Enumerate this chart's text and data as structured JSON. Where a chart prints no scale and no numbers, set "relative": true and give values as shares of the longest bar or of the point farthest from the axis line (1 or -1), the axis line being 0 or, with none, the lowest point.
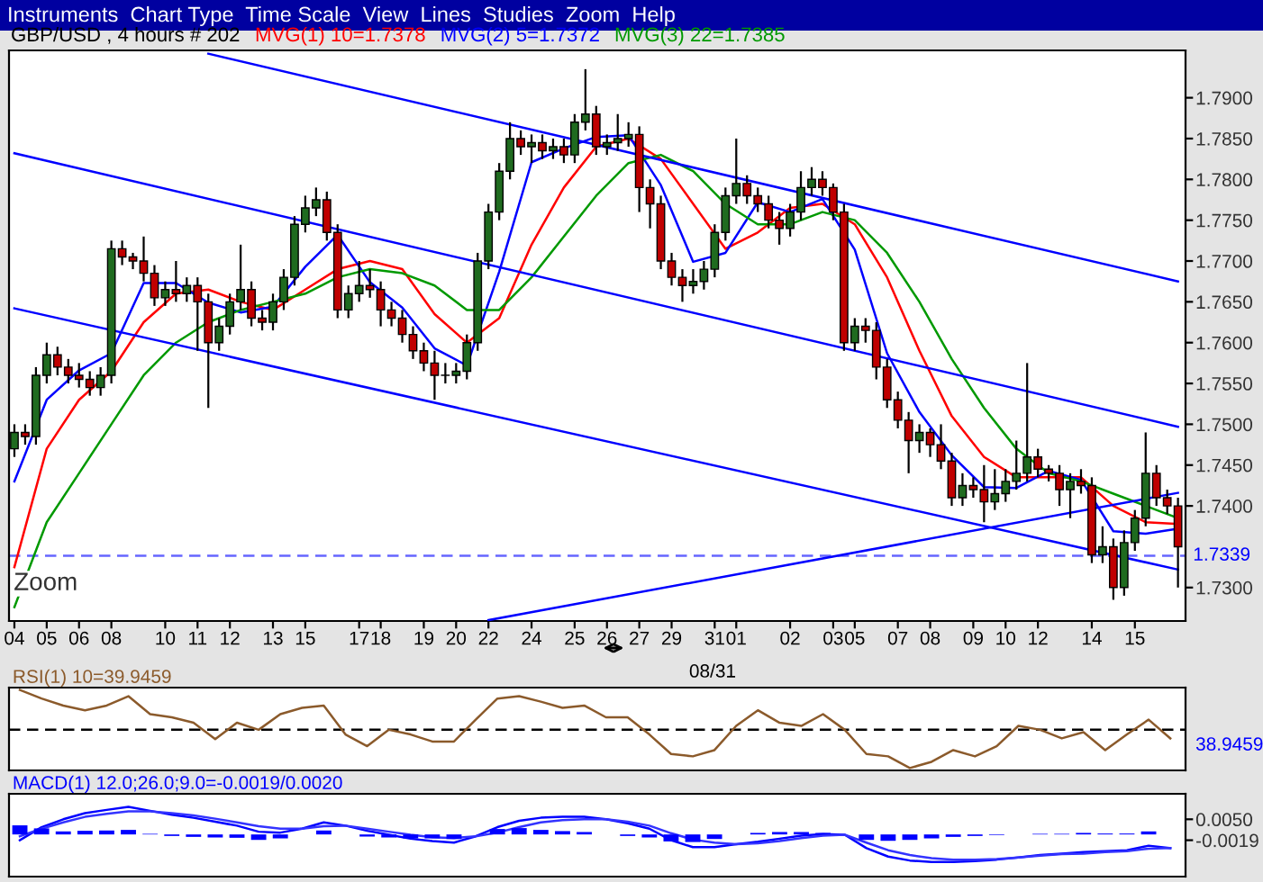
{
  "chart_data": [
    {
      "type": "candlestick",
      "title": "GBP/USD , 4 hours # 202",
      "categories": [
        "04",
        null,
        null,
        "05",
        null,
        null,
        "06",
        null,
        null,
        "08",
        null,
        null,
        null,
        null,
        "10",
        null,
        null,
        "11",
        null,
        null,
        "12",
        null,
        null,
        null,
        "13",
        null,
        null,
        "15",
        null,
        null,
        null,
        null,
        "17",
        null,
        "18",
        null,
        null,
        null,
        "19",
        null,
        null,
        "20",
        null,
        null,
        "22",
        null,
        null,
        null,
        "24",
        null,
        null,
        null,
        "25",
        null,
        null,
        "26",
        null,
        null,
        "27",
        null,
        null,
        "29",
        null,
        null,
        null,
        "31",
        null,
        "01",
        null,
        null,
        null,
        null,
        "02",
        null,
        null,
        null,
        "03",
        null,
        "05",
        null,
        null,
        null,
        "07",
        null,
        null,
        "08",
        null,
        null,
        null,
        "09",
        null,
        null,
        "10",
        null,
        null,
        "12",
        null,
        null,
        null,
        null,
        "14",
        null,
        null,
        null,
        "15",
        null,
        null,
        null,
        null
      ],
      "ohlc": [
        [
          1.747,
          1.75,
          1.746,
          1.749
        ],
        [
          1.749,
          1.75,
          1.7475,
          1.7485
        ],
        [
          1.7485,
          1.757,
          1.7475,
          1.756
        ],
        [
          1.756,
          1.76,
          1.755,
          1.7585
        ],
        [
          1.7585,
          1.7595,
          1.756,
          1.757
        ],
        [
          1.757,
          1.758,
          1.755,
          1.756
        ],
        [
          1.756,
          1.7575,
          1.7545,
          1.7555
        ],
        [
          1.7555,
          1.7565,
          1.7535,
          1.7545
        ],
        [
          1.7545,
          1.757,
          1.7535,
          1.756
        ],
        [
          1.756,
          1.7725,
          1.755,
          1.7715
        ],
        [
          1.7715,
          1.7725,
          1.7695,
          1.7705
        ],
        [
          1.7705,
          1.771,
          1.769,
          1.77
        ],
        [
          1.77,
          1.773,
          1.7675,
          1.7685
        ],
        [
          1.7685,
          1.7695,
          1.7645,
          1.7655
        ],
        [
          1.7655,
          1.7675,
          1.7645,
          1.7665
        ],
        [
          1.7665,
          1.77,
          1.765,
          1.766
        ],
        [
          1.766,
          1.768,
          1.765,
          1.767
        ],
        [
          1.767,
          1.768,
          1.759,
          1.765
        ],
        [
          1.765,
          1.766,
          1.752,
          1.76
        ],
        [
          1.76,
          1.763,
          1.759,
          1.762
        ],
        [
          1.762,
          1.766,
          1.761,
          1.765
        ],
        [
          1.765,
          1.772,
          1.764,
          1.7665
        ],
        [
          1.7665,
          1.7675,
          1.762,
          1.763
        ],
        [
          1.763,
          1.764,
          1.7615,
          1.7625
        ],
        [
          1.7625,
          1.766,
          1.7615,
          1.765
        ],
        [
          1.765,
          1.769,
          1.764,
          1.768
        ],
        [
          1.768,
          1.7755,
          1.767,
          1.7745
        ],
        [
          1.7745,
          1.778,
          1.7735,
          1.7765
        ],
        [
          1.7765,
          1.779,
          1.7755,
          1.7775
        ],
        [
          1.7775,
          1.7785,
          1.7725,
          1.7735
        ],
        [
          1.7735,
          1.7745,
          1.763,
          1.764
        ],
        [
          1.764,
          1.767,
          1.763,
          1.766
        ],
        [
          1.766,
          1.77,
          1.765,
          1.767
        ],
        [
          1.767,
          1.769,
          1.7655,
          1.7665
        ],
        [
          1.7665,
          1.7675,
          1.762,
          1.764
        ],
        [
          1.764,
          1.765,
          1.762,
          1.763
        ],
        [
          1.763,
          1.764,
          1.76,
          1.761
        ],
        [
          1.761,
          1.762,
          1.758,
          1.759
        ],
        [
          1.759,
          1.76,
          1.7565,
          1.7575
        ],
        [
          1.7575,
          1.759,
          1.753,
          1.756
        ],
        [
          1.756,
          1.7575,
          1.755,
          1.756
        ],
        [
          1.756,
          1.7575,
          1.755,
          1.7565
        ],
        [
          1.7565,
          1.761,
          1.7555,
          1.76
        ],
        [
          1.76,
          1.771,
          1.759,
          1.77
        ],
        [
          1.77,
          1.777,
          1.769,
          1.776
        ],
        [
          1.776,
          1.782,
          1.775,
          1.781
        ],
        [
          1.781,
          1.787,
          1.78,
          1.785
        ],
        [
          1.785,
          1.786,
          1.783,
          1.784
        ],
        [
          1.784,
          1.7855,
          1.782,
          1.7845
        ],
        [
          1.7845,
          1.7855,
          1.7825,
          1.7835
        ],
        [
          1.7835,
          1.785,
          1.7825,
          1.784
        ],
        [
          1.784,
          1.785,
          1.782,
          1.783
        ],
        [
          1.783,
          1.788,
          1.782,
          1.787
        ],
        [
          1.787,
          1.7935,
          1.786,
          1.788
        ],
        [
          1.788,
          1.789,
          1.783,
          1.784
        ],
        [
          1.784,
          1.7855,
          1.783,
          1.7845
        ],
        [
          1.7845,
          1.788,
          1.7835,
          1.785
        ],
        [
          1.785,
          1.787,
          1.784,
          1.7855
        ],
        [
          1.7855,
          1.7865,
          1.776,
          1.779
        ],
        [
          1.779,
          1.78,
          1.774,
          1.777
        ],
        [
          1.777,
          1.778,
          1.769,
          1.77
        ],
        [
          1.77,
          1.771,
          1.767,
          1.768
        ],
        [
          1.768,
          1.769,
          1.765,
          1.767
        ],
        [
          1.767,
          1.769,
          1.766,
          1.7675
        ],
        [
          1.7675,
          1.77,
          1.7665,
          1.769
        ],
        [
          1.769,
          1.7745,
          1.768,
          1.7735
        ],
        [
          1.7735,
          1.779,
          1.7725,
          1.778
        ],
        [
          1.778,
          1.785,
          1.777,
          1.7795
        ],
        [
          1.7795,
          1.7805,
          1.777,
          1.778
        ],
        [
          1.778,
          1.779,
          1.776,
          1.777
        ],
        [
          1.777,
          1.778,
          1.774,
          1.775
        ],
        [
          1.775,
          1.776,
          1.772,
          1.774
        ],
        [
          1.774,
          1.777,
          1.773,
          1.776
        ],
        [
          1.776,
          1.781,
          1.775,
          1.779
        ],
        [
          1.779,
          1.7815,
          1.778,
          1.78
        ],
        [
          1.78,
          1.781,
          1.778,
          1.779
        ],
        [
          1.779,
          1.7795,
          1.775,
          1.776
        ],
        [
          1.776,
          1.777,
          1.759,
          1.76
        ],
        [
          1.76,
          1.763,
          1.759,
          1.762
        ],
        [
          1.762,
          1.763,
          1.76,
          1.7615
        ],
        [
          1.7615,
          1.7625,
          1.7555,
          1.757
        ],
        [
          1.757,
          1.758,
          1.752,
          1.753
        ],
        [
          1.753,
          1.754,
          1.7495,
          1.7505
        ],
        [
          1.7505,
          1.7515,
          1.744,
          1.748
        ],
        [
          1.748,
          1.75,
          1.7465,
          1.749
        ],
        [
          1.749,
          1.7495,
          1.746,
          1.7475
        ],
        [
          1.7475,
          1.75,
          1.7445,
          1.7455
        ],
        [
          1.7455,
          1.7465,
          1.74,
          1.741
        ],
        [
          1.741,
          1.744,
          1.74,
          1.7425
        ],
        [
          1.7425,
          1.7435,
          1.741,
          1.742
        ],
        [
          1.742,
          1.745,
          1.738,
          1.7405
        ],
        [
          1.7405,
          1.7445,
          1.7395,
          1.7415
        ],
        [
          1.7415,
          1.7445,
          1.7405,
          1.743
        ],
        [
          1.743,
          1.748,
          1.742,
          1.744
        ],
        [
          1.744,
          1.7575,
          1.743,
          1.746
        ],
        [
          1.746,
          1.747,
          1.7435,
          1.7445
        ],
        [
          1.7445,
          1.745,
          1.743,
          1.744
        ],
        [
          1.744,
          1.745,
          1.74,
          1.742
        ],
        [
          1.742,
          1.744,
          1.7385,
          1.743
        ],
        [
          1.743,
          1.7445,
          1.7415,
          1.7425
        ],
        [
          1.7425,
          1.7435,
          1.733,
          1.734
        ],
        [
          1.734,
          1.7375,
          1.733,
          1.735
        ],
        [
          1.735,
          1.736,
          1.7285,
          1.73
        ],
        [
          1.73,
          1.737,
          1.729,
          1.7355
        ],
        [
          1.7355,
          1.7395,
          1.7345,
          1.7385
        ],
        [
          1.7385,
          1.749,
          1.7375,
          1.744
        ],
        [
          1.744,
          1.745,
          1.74,
          1.741
        ],
        [
          1.741,
          1.742,
          1.739,
          1.74
        ],
        [
          1.74,
          1.741,
          1.73,
          1.735
        ]
      ],
      "series": [
        {
          "type": "line",
          "name": "MVG(1) 10=1.7378",
          "color": "#ff0000",
          "values": [
            1.7325,
            null,
            null,
            1.747,
            null,
            null,
            1.753,
            null,
            null,
            1.7565,
            null,
            null,
            1.7625,
            null,
            null,
            1.766,
            null,
            null,
            1.7665,
            null,
            null,
            1.765,
            null,
            null,
            1.764,
            null,
            null,
            1.7665,
            null,
            null,
            1.769,
            null,
            null,
            1.77,
            null,
            null,
            1.769,
            null,
            null,
            1.7635,
            null,
            null,
            1.76,
            null,
            null,
            1.763,
            null,
            null,
            1.772,
            null,
            null,
            1.779,
            null,
            null,
            1.784,
            null,
            null,
            1.785,
            null,
            null,
            1.7825,
            null,
            null,
            1.777,
            null,
            null,
            1.7715,
            null,
            null,
            1.7735,
            null,
            null,
            1.7765,
            null,
            null,
            1.777,
            null,
            null,
            1.7745,
            null,
            null,
            1.768,
            null,
            null,
            1.759,
            null,
            null,
            1.751,
            null,
            null,
            1.746,
            null,
            null,
            1.7435,
            null,
            null,
            1.7435,
            null,
            null,
            1.7435,
            null,
            null,
            1.74,
            null,
            null,
            1.738,
            null,
            null,
            1.7378
          ]
        },
        {
          "type": "line",
          "name": "MVG(2) 5=1.7372",
          "color": "#0000ff",
          "values": [
            1.743,
            null,
            null,
            1.753,
            null,
            null,
            1.7566,
            null,
            null,
            1.7587,
            null,
            null,
            1.7673,
            null,
            null,
            1.7673,
            null,
            null,
            1.7649,
            null,
            null,
            1.7637,
            null,
            null,
            1.7644,
            null,
            null,
            1.7693,
            null,
            null,
            1.7732,
            null,
            null,
            1.7674,
            null,
            null,
            1.7643,
            null,
            null,
            1.7593,
            null,
            null,
            1.7572,
            null,
            null,
            1.7687,
            null,
            null,
            1.7821,
            null,
            null,
            1.7838,
            null,
            null,
            1.7852,
            null,
            null,
            1.7854,
            null,
            null,
            1.7793,
            null,
            null,
            1.7699,
            null,
            null,
            1.771,
            null,
            null,
            1.7772,
            null,
            null,
            1.776,
            null,
            null,
            1.7776,
            null,
            null,
            1.7714,
            null,
            null,
            1.7587,
            null,
            null,
            1.7515,
            null,
            null,
            1.7462,
            null,
            null,
            1.7423,
            null,
            null,
            1.7422,
            null,
            null,
            1.7443,
            null,
            null,
            1.7432,
            null,
            null,
            1.7369,
            null,
            null,
            1.7366,
            null,
            null,
            1.7372
          ]
        },
        {
          "type": "line",
          "name": "MVG(3) 22=1.7385",
          "color": "#009900",
          "values": [
            1.7276,
            null,
            null,
            1.738,
            null,
            null,
            1.744,
            null,
            null,
            1.75,
            null,
            null,
            1.756,
            null,
            null,
            1.76,
            null,
            null,
            1.7625,
            null,
            null,
            1.764,
            null,
            null,
            1.765,
            null,
            null,
            1.766,
            null,
            null,
            1.768,
            null,
            null,
            1.769,
            null,
            null,
            1.7685,
            null,
            null,
            1.767,
            null,
            null,
            1.764,
            null,
            null,
            1.764,
            null,
            null,
            1.768,
            null,
            null,
            1.773,
            null,
            null,
            1.778,
            null,
            null,
            1.782,
            null,
            null,
            1.783,
            null,
            null,
            1.781,
            null,
            null,
            1.777,
            null,
            null,
            1.7745,
            null,
            null,
            1.7745,
            null,
            null,
            1.776,
            null,
            null,
            1.775,
            null,
            null,
            1.771,
            null,
            null,
            1.765,
            null,
            null,
            1.758,
            null,
            null,
            1.752,
            null,
            null,
            1.747,
            null,
            null,
            1.744,
            null,
            null,
            1.743,
            null,
            null,
            1.7415,
            null,
            null,
            1.74,
            null,
            null,
            1.7385
          ]
        },
        {
          "type": "line",
          "color": "#0000ff",
          "values": [
            null,
            null,
            null,
            null,
            null,
            null,
            null,
            null,
            null,
            null,
            null,
            null,
            null,
            null,
            null,
            null,
            null,
            null,
            1.7954,
            null,
            null,
            null,
            null,
            null,
            null,
            null,
            null,
            null,
            null,
            null,
            null,
            null,
            null,
            null,
            null,
            null,
            null,
            null,
            null,
            null,
            null,
            null,
            null,
            null,
            null,
            null,
            null,
            null,
            null,
            null,
            null,
            null,
            null,
            null,
            null,
            null,
            null,
            null,
            null,
            null,
            null,
            null,
            null,
            null,
            null,
            null,
            null,
            null,
            null,
            null,
            null,
            null,
            null,
            null,
            null,
            null,
            null,
            null,
            null,
            null,
            null,
            null,
            null,
            null,
            null,
            null,
            null,
            null,
            null,
            null,
            null,
            null,
            null,
            null,
            null,
            null,
            null,
            null,
            null,
            null,
            null,
            null,
            null,
            null,
            null,
            null,
            null,
            null,
            1.7675
          ]
        },
        {
          "type": "line",
          "color": "#0000ff",
          "values": [
            1.7832,
            null,
            null,
            null,
            null,
            null,
            null,
            null,
            null,
            null,
            null,
            null,
            null,
            null,
            null,
            null,
            null,
            null,
            null,
            null,
            null,
            null,
            null,
            null,
            null,
            null,
            null,
            null,
            null,
            null,
            null,
            null,
            null,
            null,
            null,
            null,
            null,
            null,
            null,
            null,
            null,
            null,
            null,
            null,
            null,
            null,
            null,
            null,
            null,
            null,
            null,
            null,
            null,
            null,
            null,
            null,
            null,
            null,
            null,
            null,
            null,
            null,
            null,
            null,
            null,
            null,
            null,
            null,
            null,
            null,
            null,
            null,
            null,
            null,
            null,
            null,
            null,
            null,
            null,
            null,
            null,
            null,
            null,
            null,
            null,
            null,
            null,
            null,
            null,
            null,
            null,
            null,
            null,
            null,
            null,
            null,
            null,
            null,
            null,
            null,
            null,
            null,
            null,
            null,
            null,
            null,
            null,
            null,
            1.7497
          ]
        },
        {
          "type": "line",
          "color": "#0000ff",
          "values": [
            1.7642,
            null,
            null,
            null,
            null,
            null,
            null,
            null,
            null,
            null,
            null,
            null,
            null,
            null,
            null,
            null,
            null,
            null,
            null,
            null,
            null,
            null,
            null,
            null,
            null,
            null,
            null,
            null,
            null,
            null,
            null,
            null,
            null,
            null,
            null,
            null,
            null,
            null,
            null,
            null,
            null,
            null,
            null,
            null,
            null,
            null,
            null,
            null,
            null,
            null,
            null,
            null,
            null,
            null,
            null,
            null,
            null,
            null,
            null,
            null,
            null,
            null,
            null,
            null,
            null,
            null,
            null,
            null,
            null,
            null,
            null,
            null,
            null,
            null,
            null,
            null,
            null,
            null,
            null,
            null,
            null,
            null,
            null,
            null,
            null,
            null,
            null,
            null,
            null,
            null,
            null,
            null,
            null,
            null,
            null,
            null,
            null,
            null,
            null,
            null,
            null,
            null,
            null,
            null,
            null,
            null,
            null,
            null,
            1.7322
          ]
        },
        {
          "type": "line",
          "color": "#0000ff",
          "values": [
            null,
            null,
            null,
            null,
            null,
            null,
            null,
            null,
            null,
            null,
            null,
            null,
            null,
            null,
            null,
            null,
            null,
            null,
            null,
            null,
            null,
            null,
            null,
            null,
            null,
            null,
            null,
            null,
            null,
            null,
            null,
            null,
            null,
            null,
            null,
            null,
            null,
            null,
            null,
            null,
            null,
            null,
            null,
            null,
            1.726,
            null,
            null,
            null,
            null,
            null,
            null,
            null,
            null,
            null,
            null,
            null,
            null,
            null,
            null,
            null,
            null,
            null,
            null,
            null,
            null,
            null,
            null,
            null,
            null,
            null,
            null,
            null,
            null,
            null,
            null,
            null,
            null,
            null,
            null,
            null,
            null,
            null,
            null,
            null,
            null,
            null,
            null,
            null,
            null,
            null,
            null,
            null,
            null,
            null,
            null,
            null,
            null,
            null,
            null,
            null,
            null,
            null,
            null,
            null,
            null,
            null,
            null,
            null,
            1.7416
          ]
        }
      ],
      "xlabel": "08/31",
      "ylim": [
        1.7259,
        1.7958
      ],
      "yticks": [
        {
          "value": 1.73,
          "label": "1.7300"
        },
        {
          "value": 1.74,
          "label": "1.7400"
        },
        {
          "value": 1.745,
          "label": "1.7450"
        },
        {
          "value": 1.75,
          "label": "1.7500"
        },
        {
          "value": 1.755,
          "label": "1.7550"
        },
        {
          "value": 1.76,
          "label": "1.7600"
        },
        {
          "value": 1.765,
          "label": "1.7650"
        },
        {
          "value": 1.77,
          "label": "1.7700"
        },
        {
          "value": 1.775,
          "label": "1.7750"
        },
        {
          "value": 1.78,
          "label": "1.7800"
        },
        {
          "value": 1.785,
          "label": "1.7850"
        },
        {
          "value": 1.79,
          "label": "1.7900"
        }
      ],
      "ref_lines": [
        {
          "axis": "y",
          "value": 1.7339,
          "label": "1.7339",
          "color": "#6666ff",
          "line_style": "dashed"
        }
      ],
      "annotations": [
        "Instruments  Chart Type  Time Scale  View  Lines  Studies  Zoom  Help",
        "Zoom"
      ]
    },
    {
      "type": "line",
      "title": "RSI(1) 10=39.9459",
      "relative": true,
      "color": "#8b5a2b",
      "categories": [
        null,
        null,
        null,
        null,
        null,
        null,
        null,
        null,
        null,
        null,
        null,
        null,
        null,
        null,
        null,
        null,
        null,
        null,
        null,
        null,
        null,
        null,
        null,
        null,
        null,
        null,
        null,
        null,
        null,
        null,
        null,
        null,
        null,
        null,
        null,
        null,
        null,
        null,
        null,
        null,
        null,
        null,
        null,
        null,
        null,
        null,
        null,
        null,
        null,
        null,
        null,
        null,
        null,
        null
      ],
      "values": [
        1.0,
        0.89,
        0.8,
        0.74,
        0.8,
        0.92,
        0.69,
        0.65,
        0.58,
        0.37,
        0.58,
        0.49,
        0.69,
        0.77,
        0.8,
        0.43,
        0.28,
        0.49,
        0.43,
        0.34,
        0.34,
        0.62,
        0.89,
        0.92,
        0.85,
        0.77,
        0.8,
        0.65,
        0.65,
        0.43,
        0.18,
        0.15,
        0.23,
        0.54,
        0.74,
        0.58,
        0.54,
        0.69,
        0.49,
        0.18,
        0.15,
        0.0,
        0.08,
        0.23,
        0.15,
        0.28,
        0.54,
        0.49,
        0.38,
        0.46,
        0.23,
        0.43,
        0.62,
        0.38
      ],
      "ref_lines": [
        {
          "axis": "y",
          "value": 0.49,
          "color": "#000000",
          "line_style": "dashed"
        }
      ],
      "annotations": [
        "38.9459"
      ]
    },
    {
      "type": "line",
      "title": "MACD(1) 12.0;26.0;9.0=-0.0019/0.0020",
      "tick_labels": "y",
      "categories": [
        null,
        null,
        null,
        null,
        null,
        null,
        null,
        null,
        null,
        null,
        null,
        null,
        null,
        null,
        null,
        null,
        null,
        null,
        null,
        null,
        null,
        null,
        null,
        null,
        null,
        null,
        null,
        null,
        null,
        null,
        null,
        null,
        null,
        null,
        null,
        null,
        null,
        null,
        null,
        null,
        null,
        null,
        null,
        null,
        null,
        null,
        null,
        null,
        null,
        null,
        null,
        null,
        null,
        null
      ],
      "series": [
        {
          "type": "bar",
          "color": "#0000ff",
          "values": [
            0.003,
            0.002,
            0.001,
            0.0012,
            0.0013,
            0.0015,
            0.0002,
            -0.0005,
            -0.0008,
            -0.001,
            -0.0011,
            -0.0018,
            -0.0013,
            0.0,
            0.0013,
            0.0,
            -0.0007,
            -0.001,
            -0.0013,
            -0.0013,
            -0.0015,
            0.0,
            0.0018,
            0.0021,
            0.0015,
            0.0011,
            0.0008,
            0.0,
            -0.0005,
            -0.001,
            -0.0023,
            -0.0025,
            -0.0015,
            0.0,
            0.0005,
            0.0008,
            0.0008,
            0.0005,
            0.0,
            -0.0018,
            -0.0021,
            -0.0018,
            -0.0013,
            -0.0008,
            -0.0005,
            -0.0002,
            0.0,
            0.0002,
            0.0002,
            0.0005,
            0.0003,
            0.0003,
            0.001,
            0.0
          ]
        },
        {
          "type": "line",
          "color": "#0000ff",
          "values": [
            -0.0019,
            0.0024,
            0.005,
            0.007,
            0.0081,
            0.0091,
            0.0078,
            0.0065,
            0.0055,
            0.0042,
            0.0029,
            0.0009,
            0.0006,
            0.0019,
            0.004,
            0.0029,
            0.0012,
            -0.0001,
            -0.0014,
            -0.0022,
            -0.0027,
            -0.0006,
            0.0024,
            0.0045,
            0.0055,
            0.0058,
            0.0058,
            0.005,
            0.0037,
            0.0019,
            -0.0019,
            -0.0042,
            -0.0042,
            -0.0032,
            -0.0024,
            -0.0014,
            -0.0004,
            0.0001,
            -0.0001,
            -0.0045,
            -0.0073,
            -0.0086,
            -0.0091,
            -0.0091,
            -0.0088,
            -0.0083,
            -0.0076,
            -0.0068,
            -0.0063,
            -0.0058,
            -0.0055,
            -0.0052,
            -0.0037,
            -0.0045
          ]
        },
        {
          "type": "line",
          "color": "#3333ff",
          "values": [
            -0.0006,
            0.0019,
            0.004,
            0.0058,
            0.0068,
            0.0076,
            0.0076,
            0.007,
            0.0063,
            0.0052,
            0.004,
            0.0027,
            0.0019,
            0.0019,
            0.0027,
            0.0029,
            0.0019,
            0.0009,
            -0.0001,
            -0.0009,
            -0.0012,
            -0.0006,
            0.0006,
            0.0024,
            0.004,
            0.0047,
            0.005,
            0.005,
            0.0042,
            0.0029,
            0.0004,
            -0.0017,
            -0.0027,
            -0.0032,
            -0.0029,
            -0.0022,
            -0.0012,
            -0.0004,
            -0.0001,
            -0.0027,
            -0.0052,
            -0.0068,
            -0.0078,
            -0.0083,
            -0.0083,
            -0.0081,
            -0.0076,
            -0.007,
            -0.0065,
            -0.0063,
            -0.0058,
            -0.0055,
            -0.0047,
            -0.0045
          ]
        }
      ],
      "ylim": [
        -0.0139,
        0.0134
      ],
      "yticks": [
        {
          "value": 0.005,
          "label": "0.0050"
        },
        {
          "value": -0.0019,
          "label": "-0.0019"
        }
      ]
    }
  ]
}
